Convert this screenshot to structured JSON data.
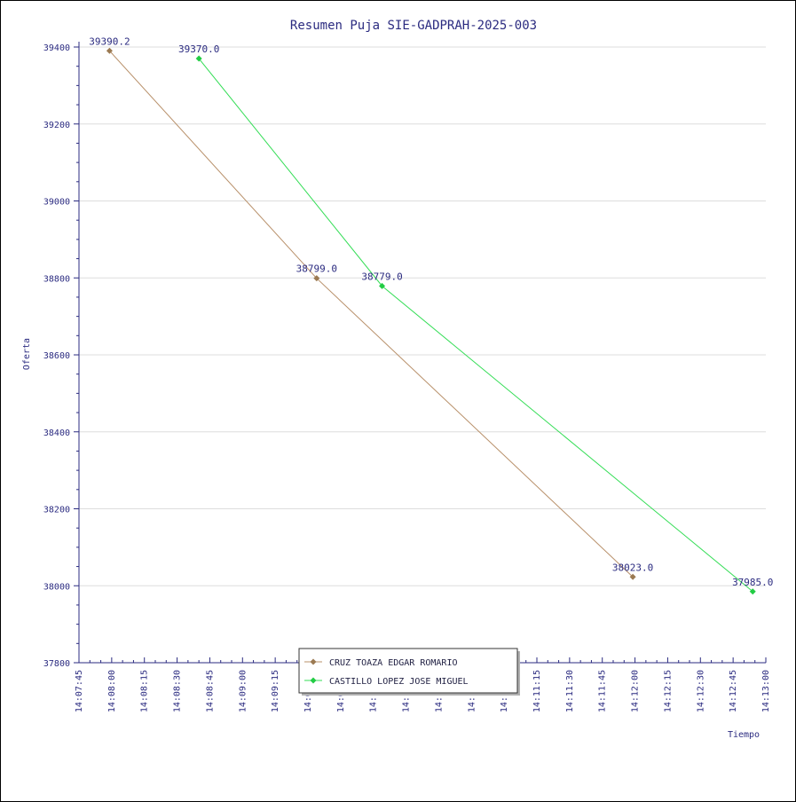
{
  "chart_data": {
    "type": "line",
    "title": "Resumen Puja SIE-GADPRAH-2025-003",
    "xlabel": "Tiempo",
    "ylabel": "Oferta",
    "xlim": [
      "14:07:45",
      "14:13:00"
    ],
    "ylim": [
      37800,
      39400
    ],
    "x_ticks": [
      "14:07:45",
      "14:08:00",
      "14:08:15",
      "14:08:30",
      "14:08:45",
      "14:09:00",
      "14:09:15",
      "14:09:30",
      "14:09:45",
      "14:10:00",
      "14:10:15",
      "14:10:30",
      "14:10:45",
      "14:11:00",
      "14:11:15",
      "14:11:30",
      "14:11:45",
      "14:12:00",
      "14:12:15",
      "14:12:30",
      "14:12:45",
      "14:13:00"
    ],
    "y_ticks": [
      37800,
      38000,
      38200,
      38400,
      38600,
      38800,
      39000,
      39200,
      39400
    ],
    "grid": true,
    "legend_position": "bottom-center",
    "series": [
      {
        "name": "CRUZ TOAZA EDGAR ROMARIO",
        "color": "#b8906a",
        "marker_color": "#9b7a52",
        "points": [
          {
            "x": "14:07:59",
            "y": 39390.2,
            "label": "39390.2"
          },
          {
            "x": "14:09:34",
            "y": 38799.0,
            "label": "38799.0"
          },
          {
            "x": "14:11:59",
            "y": 38023.0,
            "label": "38023.0"
          }
        ]
      },
      {
        "name": "CASTILLO LOPEZ JOSE MIGUEL",
        "color": "#33dd55",
        "marker_color": "#22cc44",
        "points": [
          {
            "x": "14:08:40",
            "y": 39370.0,
            "label": "39370.0"
          },
          {
            "x": "14:10:04",
            "y": 38779.0,
            "label": "38779.0"
          },
          {
            "x": "14:12:54",
            "y": 37985.0,
            "label": "37985.0"
          }
        ]
      }
    ]
  }
}
